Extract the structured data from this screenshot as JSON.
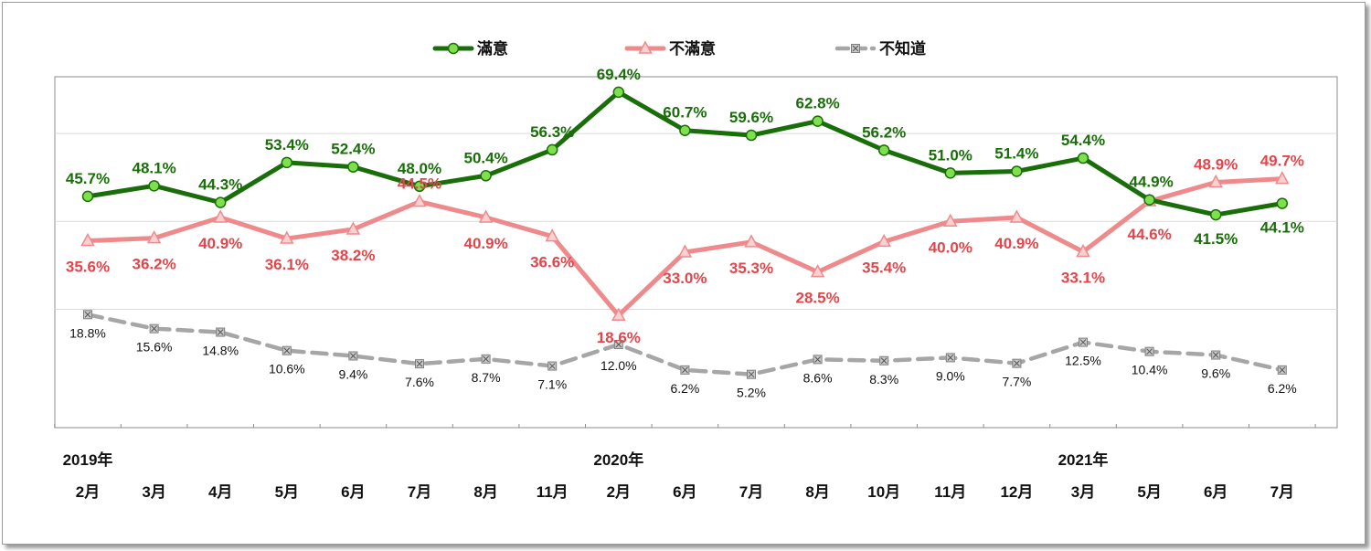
{
  "chart_data": {
    "type": "line",
    "categories": [
      "2月",
      "3月",
      "4月",
      "5月",
      "6月",
      "7月",
      "8月",
      "11月",
      "2月",
      "6月",
      "7月",
      "8月",
      "10月",
      "11月",
      "12月",
      "3月",
      "5月",
      "6月",
      "7月"
    ],
    "year_labels": [
      {
        "label": "2019年",
        "index": 0
      },
      {
        "label": "2020年",
        "index": 8
      },
      {
        "label": "2021年",
        "index": 15
      }
    ],
    "series": [
      {
        "name": "滿意",
        "color": "#1a6e0a",
        "marker_fill": "#7ee04c",
        "values": [
          45.7,
          48.1,
          44.3,
          53.4,
          52.4,
          48.0,
          50.4,
          56.3,
          69.4,
          60.7,
          59.6,
          62.8,
          56.2,
          51.0,
          51.4,
          54.4,
          44.9,
          41.5,
          44.1
        ],
        "labels": [
          "45.7%",
          "48.1%",
          "44.3%",
          "53.4%",
          "52.4%",
          "48.0%",
          "50.4%",
          "56.3%",
          "69.4%",
          "60.7%",
          "59.6%",
          "62.8%",
          "56.2%",
          "51.0%",
          "51.4%",
          "54.4%",
          "44.9%",
          "41.5%",
          "44.1%"
        ]
      },
      {
        "name": "不滿意",
        "color": "#ef8a8c",
        "marker_fill": "#fbd0d0",
        "label_color": "#e0474c",
        "values": [
          35.6,
          36.2,
          40.9,
          36.1,
          38.2,
          44.5,
          40.9,
          36.6,
          18.6,
          33.0,
          35.3,
          28.5,
          35.4,
          40.0,
          40.9,
          33.1,
          44.6,
          48.9,
          49.7
        ],
        "labels": [
          "35.6%",
          "36.2%",
          "40.9%",
          "36.1%",
          "38.2%",
          "44.5%",
          "40.9%",
          "36.6%",
          "18.6%",
          "33.0%",
          "35.3%",
          "28.5%",
          "35.4%",
          "40.0%",
          "40.9%",
          "33.1%",
          "44.6%",
          "48.9%",
          "49.7%"
        ]
      },
      {
        "name": "不知道",
        "color": "#a6a6a6",
        "marker_fill": "#c8c8c8",
        "label_color": "#111111",
        "values": [
          18.8,
          15.6,
          14.8,
          10.6,
          9.4,
          7.6,
          8.7,
          7.1,
          12.0,
          6.2,
          5.2,
          8.6,
          8.3,
          9.0,
          7.7,
          12.5,
          10.4,
          9.6,
          6.2
        ],
        "labels": [
          "18.8%",
          "15.6%",
          "14.8%",
          "10.6%",
          "9.4%",
          "7.6%",
          "8.7%",
          "7.1%",
          "12.0%",
          "6.2%",
          "5.2%",
          "8.6%",
          "8.3%",
          "9.0%",
          "7.7%",
          "12.5%",
          "10.4%",
          "9.6%",
          "6.2%"
        ]
      }
    ],
    "ylim": [
      0,
      80
    ],
    "grid": true,
    "legend_position": "top-center"
  }
}
